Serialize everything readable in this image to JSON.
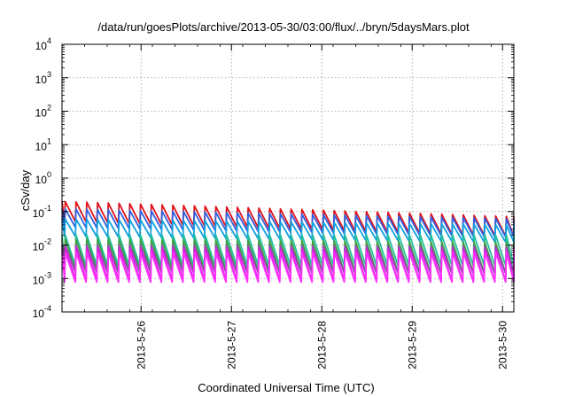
{
  "chart_data": {
    "type": "line",
    "title": "/data/run/goesPlots/archive/2013-05-30/03:00/flux/../bryn/5daysMars.plot",
    "xlabel": "Coordinated Universal Time (UTC)",
    "ylabel": "cSv/day",
    "y_scale": "log",
    "ylim": [
      0.0001,
      10000
    ],
    "y_ticks": [
      {
        "base": "10",
        "exp": "-4"
      },
      {
        "base": "10",
        "exp": "-3"
      },
      {
        "base": "10",
        "exp": "-2"
      },
      {
        "base": "10",
        "exp": "-1"
      },
      {
        "base": "10",
        "exp": "0"
      },
      {
        "base": "10",
        "exp": "1"
      },
      {
        "base": "10",
        "exp": "2"
      },
      {
        "base": "10",
        "exp": "3"
      },
      {
        "base": "10",
        "exp": "4"
      }
    ],
    "xlim": [
      "2013-05-25 03:00",
      "2013-05-30 03:00"
    ],
    "x_ticks": [
      "2013-5-26",
      "2013-5-27",
      "2013-5-28",
      "2013-5-29",
      "2013-5-30"
    ],
    "grid": true,
    "sawtooth_cycles": 42,
    "series": [
      {
        "color": "#e0101a",
        "start_peak": 0.2,
        "end_peak": 0.07,
        "trough_ratio": 0.25
      },
      {
        "color": "#3060e0",
        "start_peak": 0.12,
        "end_peak": 0.06,
        "trough_ratio": 0.28
      },
      {
        "color": "#10a0e0",
        "start_peak": 0.06,
        "end_peak": 0.04,
        "trough_ratio": 0.3
      },
      {
        "color": "#20c0a0",
        "start_peak": 0.02,
        "end_peak": 0.02,
        "trough_ratio": 0.12
      },
      {
        "color": "#40a040",
        "start_peak": 0.015,
        "end_peak": 0.012,
        "trough_ratio": 0.12
      },
      {
        "color": "#a040c0",
        "start_peak": 0.01,
        "end_peak": 0.009,
        "trough_ratio": 0.15
      },
      {
        "color": "#e020e0",
        "start_peak": 0.008,
        "end_peak": 0.007,
        "trough_ratio": 0.12
      },
      {
        "color": "#ff30ff",
        "start_peak": 0.006,
        "end_peak": 0.006,
        "trough_ratio": 0.13
      }
    ]
  }
}
